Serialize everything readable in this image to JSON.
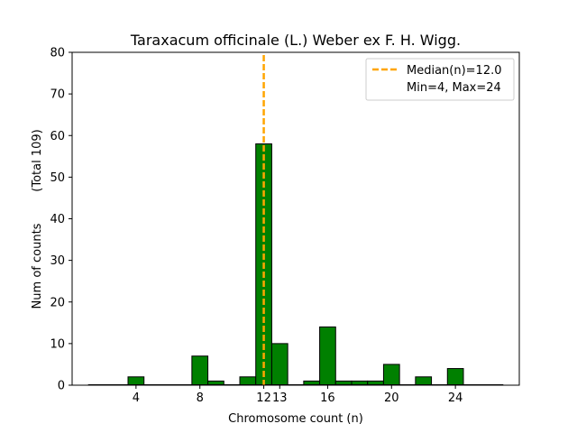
{
  "chart_data": {
    "type": "bar",
    "title": "Taraxacum officinale (L.) Weber ex F. H. Wigg.",
    "xlabel": "Chromosome count (n)",
    "ylabel": "Num of counts",
    "ylabel_note": "(Total 109)",
    "xlim": [
      0,
      28
    ],
    "ylim": [
      0,
      80
    ],
    "x_ticks": [
      4,
      8,
      12,
      13,
      16,
      20,
      24
    ],
    "y_ticks": [
      0,
      10,
      20,
      30,
      40,
      50,
      60,
      70,
      80
    ],
    "bin_width": 1,
    "x": [
      4,
      8,
      9,
      11,
      12,
      13,
      15,
      16,
      17,
      18,
      19,
      20,
      22,
      24
    ],
    "values": [
      2,
      7,
      1,
      2,
      58,
      10,
      1,
      14,
      1,
      1,
      1,
      5,
      2,
      4
    ],
    "bar_color": "#008000",
    "bar_edge_color": "#000000",
    "median": 12.0,
    "median_color": "#FFA500",
    "legend": {
      "position": "top-right",
      "median_label": "Median(n)=12.0",
      "range_label": "Min=4, Max=24"
    }
  }
}
